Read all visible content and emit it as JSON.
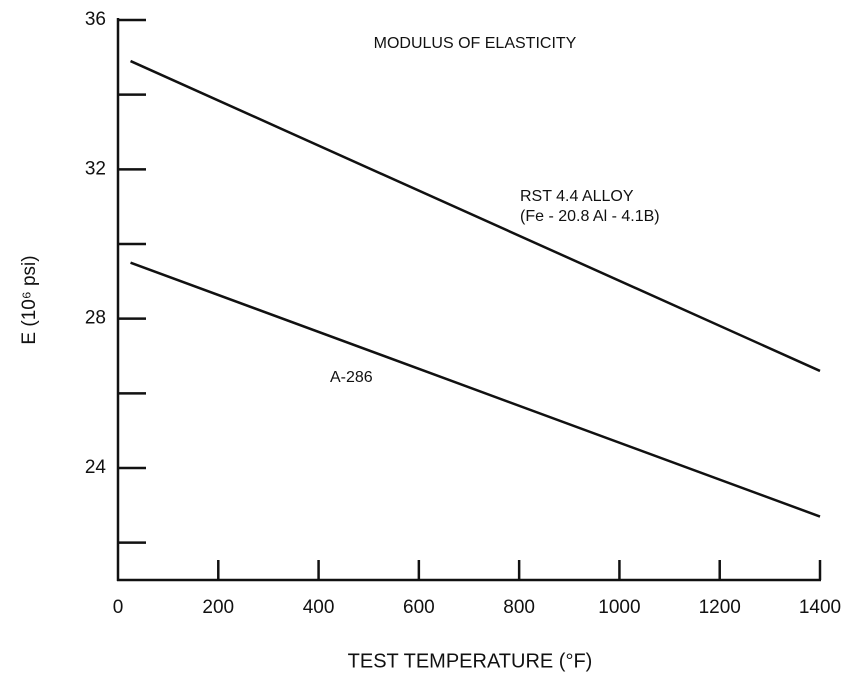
{
  "chart_data": {
    "type": "line",
    "title": "MODULUS OF ELASTICITY",
    "x_label": "TEST TEMPERATURE (°F)",
    "y_label": "E (10⁶ psi)",
    "series": [
      {
        "name": "RST 4.4 ALLOY",
        "color": "#111111",
        "x": [
          25,
          1400
        ],
        "values": [
          34.9,
          26.6
        ]
      },
      {
        "name": "A-286",
        "color": "#111111",
        "x": [
          25,
          1400
        ],
        "values": [
          29.5,
          22.7
        ]
      }
    ],
    "annotations": [
      "(Fe - 20.8  Al - 4.1B)"
    ],
    "xlim": [
      0,
      1400
    ],
    "xticks": [
      0,
      200,
      400,
      600,
      800,
      1000,
      1200,
      1400
    ],
    "ylim": [
      21,
      36
    ],
    "yticks": [
      24,
      28,
      32,
      36
    ],
    "yminor_ticks": [
      22,
      26,
      30,
      34
    ],
    "grid": false
  }
}
